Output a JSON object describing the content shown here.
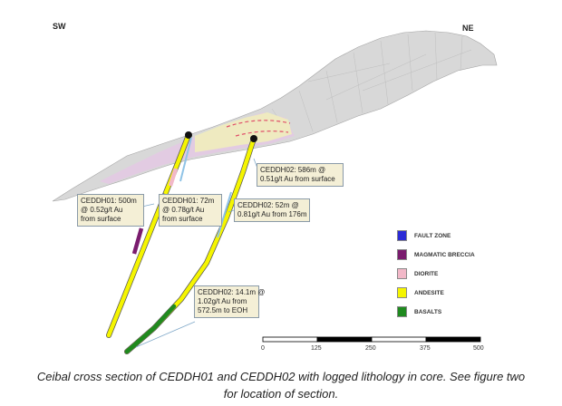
{
  "orientation": {
    "left": "SW",
    "right": "NE"
  },
  "callouts": [
    {
      "lines": [
        "CEDDH01: 500m",
        "@ 0.52g/t Au",
        "from surface"
      ]
    },
    {
      "lines": [
        "CEDDH01: 72m",
        "@ 0.78g/t Au",
        "from surface"
      ]
    },
    {
      "lines": [
        "CEDDH02: 586m @",
        "0.51g/t Au from surface"
      ]
    },
    {
      "lines": [
        "CEDDH02: 52m @",
        "0.81g/t Au from 176m"
      ]
    },
    {
      "lines": [
        "CEDDH02: 14.1m @",
        "1.02g/t Au from",
        "572.5m to EOH"
      ]
    }
  ],
  "legend": [
    {
      "label": "FAULT ZONE",
      "color": "#2b2bd6"
    },
    {
      "label": "MAGMATIC BRECCIA",
      "color": "#7a1c6e"
    },
    {
      "label": "DIORITE",
      "color": "#f2b8c8"
    },
    {
      "label": "ANDESITE",
      "color": "#f5f500"
    },
    {
      "label": "BASALTS",
      "color": "#1f8a1f"
    }
  ],
  "scale_bar": {
    "ticks": [
      "0",
      "125",
      "250",
      "375",
      "500"
    ]
  },
  "caption": {
    "line1": "Ceibal cross section of CEDDH01 and CEDDH02 with logged lithology in core. See figure two",
    "line2": "for location of section."
  },
  "colors": {
    "terrain": "#d4d4d4",
    "terrain_edge": "#9a9a9a",
    "callout_fill": "#f4efd6",
    "callout_border": "#8a9aa8",
    "leader": "#7fa8c8",
    "collar": "#111111"
  }
}
